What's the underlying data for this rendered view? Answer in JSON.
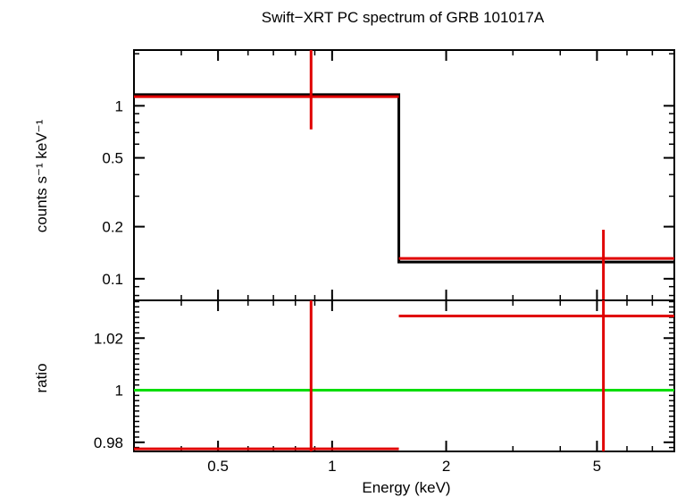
{
  "chart_data": {
    "type": "line",
    "title": "Swift−XRT PC spectrum of GRB 101017A",
    "xlabel": "Energy (keV)",
    "x_scale": "log",
    "xlim": [
      0.3,
      8.0
    ],
    "x_ticks": [
      {
        "value": 0.5,
        "label": "0.5"
      },
      {
        "value": 1,
        "label": "1"
      },
      {
        "value": 2,
        "label": "2"
      },
      {
        "value": 5,
        "label": "5"
      }
    ],
    "panels": [
      {
        "id": "spectrum",
        "ylabel": "counts s⁻¹ keV⁻¹",
        "y_scale": "log",
        "ylim": [
          0.075,
          2.1
        ],
        "y_ticks": [
          {
            "value": 1,
            "label": "1"
          },
          {
            "value": 0.5,
            "label": "0.5"
          },
          {
            "value": 0.2,
            "label": "0.2"
          },
          {
            "value": 0.1,
            "label": "0.1"
          }
        ],
        "model": {
          "color": "#000000",
          "steps": [
            {
              "x_lo": 0.3,
              "x_hi": 1.5,
              "y": 1.16
            },
            {
              "x_lo": 1.5,
              "x_hi": 8.0,
              "y": 0.125
            }
          ]
        },
        "data": {
          "color": "#e00000",
          "points": [
            {
              "x": 0.88,
              "x_lo": 0.3,
              "x_hi": 1.5,
              "y": 1.13,
              "y_lo": 0.73,
              "y_hi": 2.1
            },
            {
              "x": 5.2,
              "x_lo": 1.5,
              "x_hi": 8.0,
              "y": 0.131,
              "y_lo": 0.075,
              "y_hi": 0.192
            }
          ]
        }
      },
      {
        "id": "ratio",
        "ylabel": "ratio",
        "y_scale": "linear",
        "ylim": [
          0.9765,
          1.0345
        ],
        "y_ticks": [
          {
            "value": 1.02,
            "label": "1.02"
          },
          {
            "value": 1,
            "label": "1"
          },
          {
            "value": 0.98,
            "label": "0.98"
          }
        ],
        "reference_line": {
          "y": 1,
          "color": "#00dd00"
        },
        "data": {
          "color": "#e00000",
          "points": [
            {
              "x": 0.88,
              "x_lo": 0.3,
              "x_hi": 1.5,
              "y": 0.9775,
              "y_lo": 0.9765,
              "y_hi": 1.0345
            },
            {
              "x": 5.2,
              "x_lo": 1.5,
              "x_hi": 8.0,
              "y": 1.0285,
              "y_lo": 0.9765,
              "y_hi": 1.0345
            }
          ]
        }
      }
    ]
  }
}
